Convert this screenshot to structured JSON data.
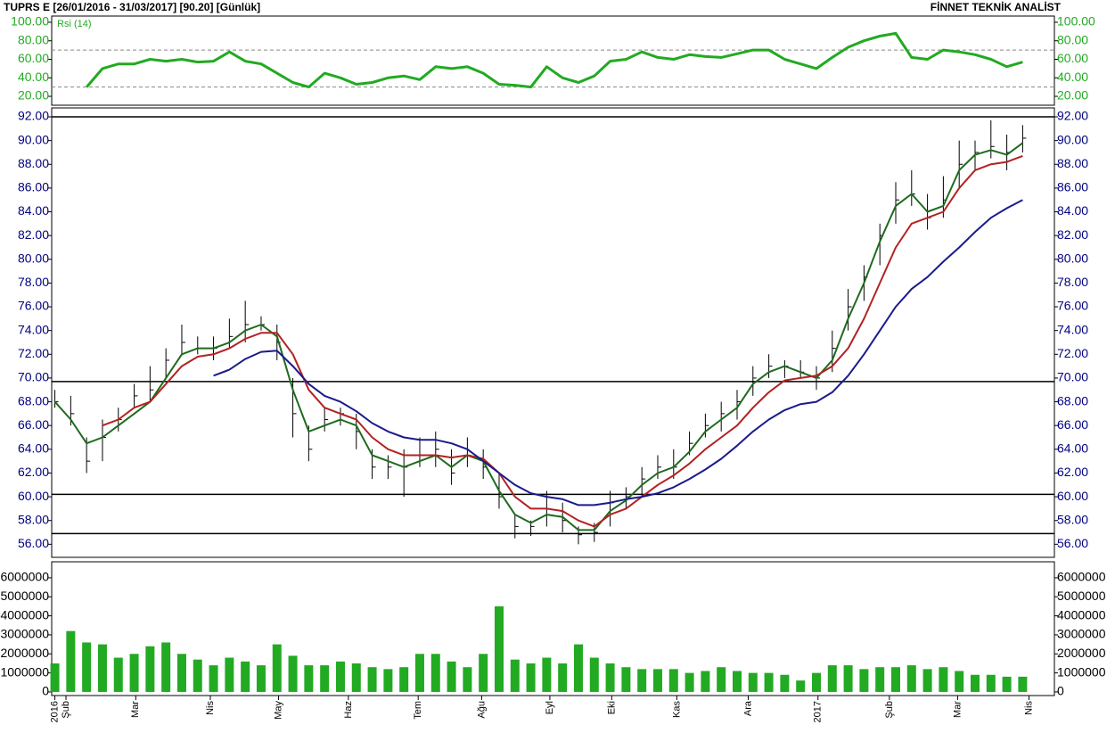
{
  "header": {
    "title": "TUPRS E  [26/01/2016 - 31/03/2017]  [90.20]  [Günlük]",
    "vendor": "FİNNET TEKNİK ANALİST"
  },
  "chart_data": [
    {
      "type": "line",
      "label": "Rsi (14)",
      "color": "#22aa22",
      "values": [
        null,
        null,
        30,
        50,
        55,
        55,
        60,
        58,
        60,
        57,
        58,
        68,
        58,
        55,
        45,
        35,
        30,
        45,
        40,
        33,
        35,
        40,
        42,
        38,
        52,
        50,
        52,
        45,
        33,
        32,
        30,
        52,
        40,
        35,
        42,
        58,
        60,
        68,
        62,
        60,
        65,
        63,
        62,
        66,
        70,
        70,
        60,
        55,
        50,
        62,
        73,
        80,
        85,
        88,
        62,
        60,
        70,
        68,
        65,
        60,
        52,
        57
      ],
      "levels": [
        30,
        70
      ],
      "xlim": [
        -0.2,
        63
      ],
      "ylim": [
        10.4,
        106.7
      ],
      "yticks": [
        {
          "value": 20,
          "label": "20.00"
        },
        {
          "value": 40,
          "label": "40.00"
        },
        {
          "value": 60,
          "label": "60.00"
        },
        {
          "value": 80,
          "label": "80.00"
        },
        {
          "value": 100,
          "label": "100.00"
        }
      ]
    },
    {
      "type": "ohlc",
      "color": "#000000",
      "high": [
        69,
        68.5,
        65,
        66.5,
        67.5,
        69.5,
        71,
        72.5,
        74.5,
        73.5,
        73.5,
        75,
        76.5,
        75.2,
        74.5,
        70,
        66,
        67.5,
        67.5,
        67,
        64,
        63.5,
        64,
        65,
        65.5,
        64,
        65,
        64,
        62,
        58.5,
        58,
        60.5,
        59.5,
        57.5,
        57.8,
        60.5,
        60.8,
        62.5,
        63.5,
        64,
        65.5,
        67,
        68,
        69,
        71,
        72,
        71.5,
        71.5,
        71,
        74,
        77.5,
        79.5,
        83,
        86.5,
        87.5,
        85.5,
        87,
        90,
        90,
        91.7,
        90.5,
        91.3
      ],
      "low": [
        67.5,
        66,
        62,
        63,
        65.5,
        67.5,
        68,
        70,
        72,
        72,
        71.5,
        72.5,
        73,
        74,
        71.5,
        65,
        63,
        65.5,
        66,
        64,
        61.5,
        61.5,
        60,
        62.5,
        62.5,
        61,
        62.5,
        61.5,
        59,
        56.5,
        56.7,
        57.5,
        57,
        56,
        56.2,
        57.5,
        59,
        60,
        61.5,
        61.5,
        63.5,
        65,
        65.5,
        66.5,
        68.5,
        70,
        70,
        70,
        69,
        70.5,
        74,
        76.5,
        79.5,
        83,
        84.5,
        82.5,
        83.5,
        86,
        87.5,
        88.5,
        87.5,
        89
      ],
      "close": [
        68,
        67,
        63,
        65,
        66.5,
        68.5,
        69,
        71.5,
        73,
        72.5,
        72.5,
        73.5,
        74.5,
        74.5,
        73,
        67,
        64,
        66.5,
        67,
        65.5,
        62.5,
        62.5,
        62.5,
        63.5,
        64,
        62,
        63.5,
        62.5,
        60,
        57.5,
        57.5,
        58.5,
        58,
        56.8,
        57,
        59.5,
        60,
        61.5,
        62.5,
        62.5,
        64.5,
        66,
        67,
        68,
        70,
        71,
        71,
        70.5,
        70,
        72.5,
        76,
        78.5,
        82,
        85,
        85.5,
        83.5,
        85,
        88,
        89,
        89.5,
        89,
        90.2
      ],
      "lines": [
        {
          "color": "#1e6b1e",
          "values": [
            68,
            66.5,
            64.5,
            65,
            66,
            67,
            68,
            70,
            72,
            72.5,
            72.5,
            73,
            74,
            74.5,
            73.5,
            69,
            65.5,
            66,
            66.5,
            66,
            63.5,
            63,
            62.5,
            63,
            63.5,
            62.5,
            63.5,
            63,
            60.5,
            58.5,
            57.8,
            58.5,
            58.3,
            57.2,
            57.2,
            58.8,
            59.7,
            61,
            62,
            62.5,
            63.8,
            65.5,
            66.5,
            67.5,
            69.5,
            70.5,
            71,
            70.5,
            70,
            71.5,
            75,
            78,
            81.5,
            84.5,
            85.5,
            84,
            84.5,
            87.5,
            88.8,
            89.2,
            88.8,
            89.8
          ]
        },
        {
          "color": "#b22222",
          "values": [
            null,
            null,
            null,
            66,
            66.5,
            67.5,
            68,
            69.5,
            71,
            71.8,
            72,
            72.5,
            73.3,
            73.8,
            73.8,
            72,
            69,
            67.5,
            67,
            66.5,
            65,
            64,
            63.5,
            63.5,
            63.5,
            63.3,
            63.5,
            63.2,
            62,
            60,
            59,
            59,
            58.8,
            58,
            57.5,
            58.5,
            59,
            60,
            61,
            61.8,
            62.8,
            64,
            65,
            66,
            67.5,
            68.8,
            69.8,
            70,
            70.2,
            71,
            72.5,
            75,
            78,
            81,
            83,
            83.5,
            84,
            86,
            87.5,
            88,
            88.2,
            88.7
          ]
        },
        {
          "color": "#1a1a8c",
          "values": [
            null,
            null,
            null,
            null,
            null,
            null,
            null,
            null,
            null,
            null,
            70.2,
            70.7,
            71.6,
            72.2,
            72.3,
            71,
            69.5,
            68.5,
            68,
            67.2,
            66.2,
            65.5,
            65,
            64.8,
            64.8,
            64.5,
            64,
            63,
            62,
            61,
            60.3,
            60,
            59.8,
            59.3,
            59.3,
            59.5,
            59.8,
            60,
            60.3,
            60.8,
            61.5,
            62.3,
            63.2,
            64.3,
            65.5,
            66.5,
            67.3,
            67.8,
            68,
            68.8,
            70.2,
            72,
            74,
            76,
            77.5,
            78.5,
            79.8,
            81,
            82.3,
            83.5,
            84.3,
            85
          ]
        }
      ],
      "hlines": [
        92,
        69.7,
        60.2,
        56.9
      ],
      "xlim": [
        -0.2,
        63
      ],
      "ylim": [
        54.9,
        92.75
      ],
      "yticks": [
        {
          "value": 56,
          "label": "56.00"
        },
        {
          "value": 58,
          "label": "58.00"
        },
        {
          "value": 60,
          "label": "60.00"
        },
        {
          "value": 62,
          "label": "62.00"
        },
        {
          "value": 64,
          "label": "64.00"
        },
        {
          "value": 66,
          "label": "66.00"
        },
        {
          "value": 68,
          "label": "68.00"
        },
        {
          "value": 70,
          "label": "70.00"
        },
        {
          "value": 72,
          "label": "72.00"
        },
        {
          "value": 74,
          "label": "74.00"
        },
        {
          "value": 76,
          "label": "76.00"
        },
        {
          "value": 78,
          "label": "78.00"
        },
        {
          "value": 80,
          "label": "80.00"
        },
        {
          "value": 82,
          "label": "82.00"
        },
        {
          "value": 84,
          "label": "84.00"
        },
        {
          "value": 86,
          "label": "86.00"
        },
        {
          "value": 88,
          "label": "88.00"
        },
        {
          "value": 90,
          "label": "90.00"
        },
        {
          "value": 92,
          "label": "92.00"
        }
      ]
    },
    {
      "type": "bar",
      "color": "#22aa22",
      "values": [
        1500000,
        3200000,
        2600000,
        2500000,
        1800000,
        2000000,
        2400000,
        2600000,
        2000000,
        1700000,
        1400000,
        1800000,
        1600000,
        1400000,
        2500000,
        1900000,
        1400000,
        1400000,
        1600000,
        1500000,
        1300000,
        1200000,
        1300000,
        2000000,
        2000000,
        1600000,
        1300000,
        2000000,
        4500000,
        1700000,
        1500000,
        1800000,
        1500000,
        2500000,
        1800000,
        1500000,
        1300000,
        1200000,
        1200000,
        1200000,
        1000000,
        1100000,
        1300000,
        1100000,
        1000000,
        1000000,
        900000,
        600000,
        1000000,
        1400000,
        1400000,
        1200000,
        1300000,
        1300000,
        1400000,
        1200000,
        1300000,
        1100000,
        900000,
        900000,
        800000,
        800000
      ],
      "xlim": [
        -0.2,
        63
      ],
      "ylim": [
        -190000,
        6840000
      ],
      "yticks": [
        0,
        1000000,
        2000000,
        3000000,
        4000000,
        5000000,
        6000000
      ],
      "xticks": [
        {
          "value": 0,
          "label": "2016"
        },
        {
          "value": 0.7,
          "label": "Şub"
        },
        {
          "value": 5.1,
          "label": "Mar"
        },
        {
          "value": 9.8,
          "label": "Nis"
        },
        {
          "value": 14.1,
          "label": "May"
        },
        {
          "value": 18.5,
          "label": "Haz"
        },
        {
          "value": 22.9,
          "label": "Tem"
        },
        {
          "value": 26.9,
          "label": "Ağu"
        },
        {
          "value": 31.2,
          "label": "Eyl"
        },
        {
          "value": 35.1,
          "label": "Eki"
        },
        {
          "value": 39.2,
          "label": "Kas"
        },
        {
          "value": 43.7,
          "label": "Ara"
        },
        {
          "value": 48.1,
          "label": "2017"
        },
        {
          "value": 52.6,
          "label": "Şub"
        },
        {
          "value": 56.9,
          "label": "Mar"
        },
        {
          "value": 61.4,
          "label": "Nis"
        }
      ]
    }
  ]
}
